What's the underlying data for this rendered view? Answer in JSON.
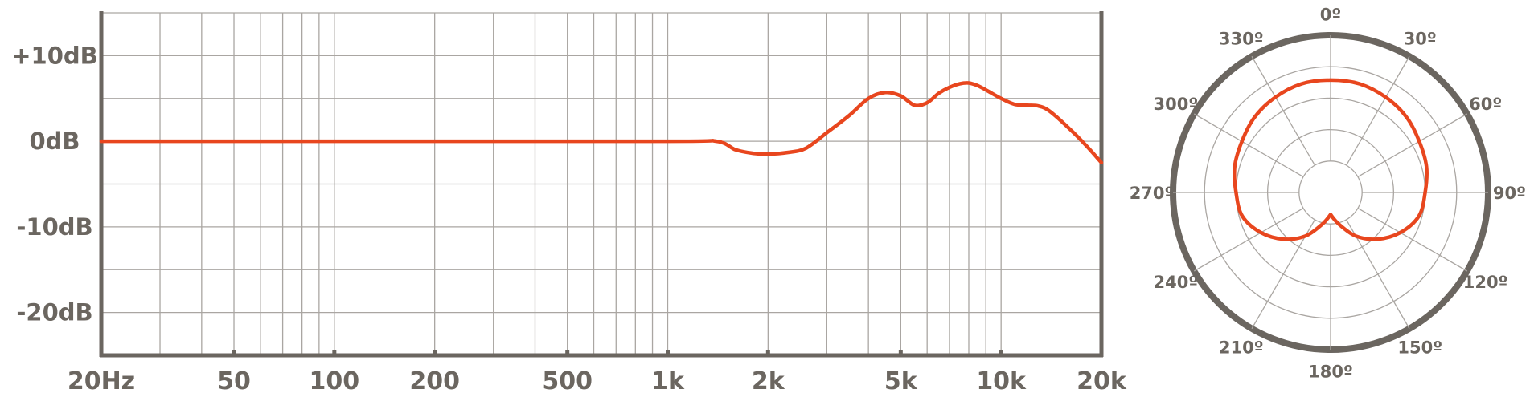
{
  "chart_data": [
    {
      "type": "line",
      "xscale": "log",
      "xlim": [
        20,
        20000
      ],
      "ylim": [
        -25,
        15
      ],
      "grid": true,
      "x_ticks": [
        {
          "value": 20,
          "label": "20Hz"
        },
        {
          "value": 50,
          "label": "50"
        },
        {
          "value": 100,
          "label": "100"
        },
        {
          "value": 200,
          "label": "200"
        },
        {
          "value": 500,
          "label": "500"
        },
        {
          "value": 1000,
          "label": "1k"
        },
        {
          "value": 2000,
          "label": "2k"
        },
        {
          "value": 5000,
          "label": "5k"
        },
        {
          "value": 10000,
          "label": "10k"
        },
        {
          "value": 20000,
          "label": "20k"
        }
      ],
      "y_ticks": [
        {
          "value": 10,
          "label": "+10dB"
        },
        {
          "value": 0,
          "label": "0dB"
        },
        {
          "value": -10,
          "label": "-10dB"
        },
        {
          "value": -20,
          "label": "-20dB"
        }
      ],
      "series": [
        {
          "color": "#e8461e",
          "x": [
            20,
            100,
            1000,
            1400,
            1600,
            1800,
            2000,
            2300,
            2600,
            3000,
            3500,
            4000,
            4500,
            5000,
            5500,
            6000,
            6500,
            7000,
            7500,
            8000,
            8500,
            9000,
            10000,
            11000,
            12000,
            13000,
            14000,
            16000,
            18000,
            20000
          ],
          "y": [
            0,
            0,
            0,
            0,
            -1,
            -1.4,
            -1.5,
            -1.3,
            -0.8,
            1,
            3,
            5,
            5.7,
            5.3,
            4.2,
            4.5,
            5.6,
            6.3,
            6.7,
            6.8,
            6.5,
            6,
            5,
            4.3,
            4.2,
            4.1,
            3.5,
            1.5,
            -0.5,
            -2.5
          ]
        }
      ]
    },
    {
      "type": "polar",
      "theta_labels": [
        {
          "deg": 0,
          "label": "0º"
        },
        {
          "deg": 30,
          "label": "30º"
        },
        {
          "deg": 60,
          "label": "60º"
        },
        {
          "deg": 90,
          "label": "90º"
        },
        {
          "deg": 120,
          "label": "120º"
        },
        {
          "deg": 150,
          "label": "150º"
        },
        {
          "deg": 180,
          "label": "180º"
        },
        {
          "deg": 210,
          "label": "210º"
        },
        {
          "deg": 240,
          "label": "240º"
        },
        {
          "deg": 270,
          "label": "270º"
        },
        {
          "deg": 300,
          "label": "300º"
        },
        {
          "deg": 330,
          "label": "330º"
        }
      ],
      "ring_levels": [
        0.2,
        0.4,
        0.6,
        0.8,
        1.0
      ],
      "grid": true,
      "series": [
        {
          "color": "#e8461e",
          "pattern": "cardioid",
          "theta_deg": [
            0,
            15,
            30,
            45,
            60,
            75,
            90,
            105,
            120,
            135,
            150,
            165,
            180,
            195,
            210,
            225,
            240,
            255,
            270,
            285,
            300,
            315,
            330,
            345,
            360
          ],
          "r": [
            0.715,
            0.715,
            0.7,
            0.68,
            0.65,
            0.63,
            0.6,
            0.58,
            0.51,
            0.42,
            0.32,
            0.21,
            0.14,
            0.21,
            0.32,
            0.42,
            0.51,
            0.58,
            0.6,
            0.63,
            0.65,
            0.68,
            0.7,
            0.715,
            0.715
          ]
        }
      ]
    }
  ]
}
